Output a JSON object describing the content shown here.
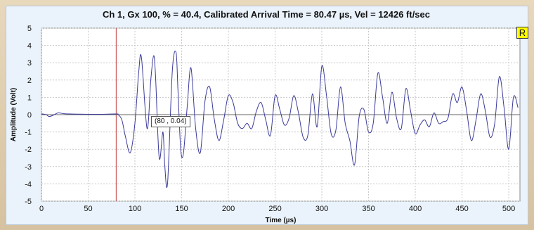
{
  "window": {
    "badge": "R",
    "cursor_readout": "(80 , 0.04)"
  },
  "chart_data": {
    "type": "line",
    "title": "Ch 1, Gx 100, % = 40.4, Calibrated Arrival Time = 80.47 µs, Vel = 12426 ft/sec",
    "xlabel": "Time (µs)",
    "ylabel": "Amplitude (Volt)",
    "xlim": [
      0,
      512
    ],
    "ylim": [
      -5,
      5
    ],
    "xticks": [
      0,
      50,
      100,
      150,
      200,
      250,
      300,
      350,
      400,
      450,
      500
    ],
    "yticks": [
      5,
      4,
      3,
      2,
      1,
      0,
      -1,
      -2,
      -3,
      -4,
      -5
    ],
    "grid": true,
    "marker": {
      "x": 80,
      "label": "(80 , 0.04)"
    },
    "series": [
      {
        "x": [
          0,
          5,
          8,
          12,
          18,
          25,
          40,
          60,
          80,
          82,
          86,
          90,
          95,
          100,
          104,
          107,
          113,
          117,
          120,
          122,
          126,
          130,
          132,
          135,
          140,
          144,
          146,
          149,
          152,
          156,
          160,
          165,
          170,
          175,
          180,
          185,
          190,
          195,
          200,
          205,
          210,
          215,
          220,
          225,
          230,
          235,
          240,
          245,
          250,
          255,
          260,
          265,
          270,
          275,
          280,
          285,
          290,
          295,
          300,
          305,
          310,
          315,
          320,
          325,
          330,
          335,
          340,
          345,
          350,
          355,
          360,
          365,
          370,
          375,
          380,
          385,
          390,
          395,
          400,
          405,
          410,
          415,
          420,
          425,
          430,
          435,
          440,
          445,
          450,
          455,
          460,
          465,
          470,
          475,
          480,
          485,
          490,
          495,
          500,
          505,
          510
        ],
        "y": [
          0.05,
          0.0,
          -0.1,
          -0.05,
          0.1,
          0.05,
          0.03,
          0.02,
          0.04,
          0.0,
          -0.3,
          -1.3,
          -2.2,
          -0.5,
          2.4,
          3.3,
          -0.8,
          2.0,
          3.4,
          2.3,
          -2.5,
          -1.0,
          -3.0,
          -3.9,
          2.5,
          3.6,
          1.5,
          -2.0,
          -2.2,
          0.5,
          2.7,
          -0.8,
          -2.2,
          0.8,
          1.6,
          -0.3,
          -1.5,
          -0.3,
          1.1,
          0.7,
          -0.5,
          -0.8,
          -0.5,
          -0.8,
          0.2,
          0.7,
          -0.3,
          -1.2,
          1.1,
          0.3,
          -0.6,
          -0.2,
          1.1,
          0.1,
          -1.3,
          -1.2,
          1.2,
          -0.7,
          2.8,
          1.1,
          -1.1,
          -0.9,
          1.6,
          -0.5,
          -1.5,
          -2.9,
          -0.1,
          0.3,
          -1.0,
          -0.5,
          2.4,
          1.0,
          -0.5,
          1.3,
          -0.2,
          -0.8,
          1.5,
          0.2,
          -1.1,
          -0.6,
          -0.3,
          -0.7,
          0.1,
          -0.5,
          -0.4,
          -0.2,
          1.2,
          0.7,
          1.6,
          0.2,
          -1.5,
          -0.3,
          1.2,
          0.2,
          -1.3,
          -0.5,
          2.2,
          0.4,
          -2.0,
          1.0,
          0.4
        ]
      }
    ]
  },
  "colors": {
    "trace": "#3a3a9a",
    "marker": "#cc5a5a",
    "grid": "#c8c8c8",
    "plot_bg": "#ffffff"
  }
}
